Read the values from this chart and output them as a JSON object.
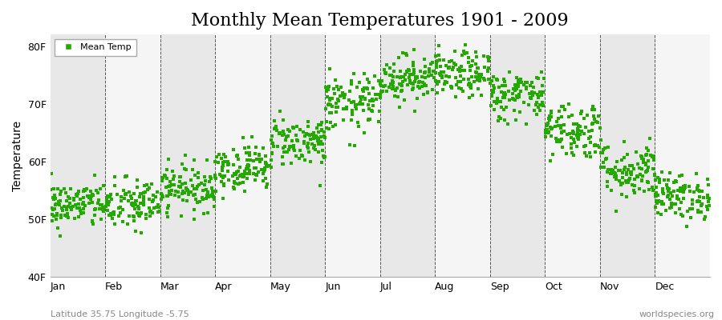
{
  "title": "Monthly Mean Temperatures 1901 - 2009",
  "ylabel": "Temperature",
  "xlabel_bottom_left": "Latitude 35.75 Longitude -5.75",
  "xlabel_bottom_right": "worldspecies.org",
  "legend_label": "Mean Temp",
  "dot_color": "#22aa00",
  "fig_bg_color": "#ffffff",
  "plot_bg_color_odd": "#e8e8e8",
  "plot_bg_color_even": "#f5f5f5",
  "ylim": [
    40,
    82
  ],
  "yticks": [
    40,
    50,
    60,
    70,
    80
  ],
  "ytick_labels": [
    "40F",
    "50F",
    "60F",
    "70F",
    "80F"
  ],
  "months": [
    "Jan",
    "Feb",
    "Mar",
    "Apr",
    "May",
    "Jun",
    "Jul",
    "Aug",
    "Sep",
    "Oct",
    "Nov",
    "Dec"
  ],
  "monthly_means_F": [
    52.5,
    52.5,
    55.5,
    59.0,
    63.5,
    70.0,
    74.5,
    75.0,
    71.5,
    65.5,
    58.5,
    54.0
  ],
  "monthly_stds_F": [
    2.0,
    2.3,
    2.0,
    2.0,
    2.2,
    2.5,
    2.0,
    2.0,
    2.2,
    2.5,
    2.5,
    2.0
  ],
  "n_years": 109,
  "seed": 42,
  "title_fontsize": 16,
  "axis_label_fontsize": 10,
  "tick_fontsize": 9,
  "dot_size": 5,
  "dot_marker": "s"
}
